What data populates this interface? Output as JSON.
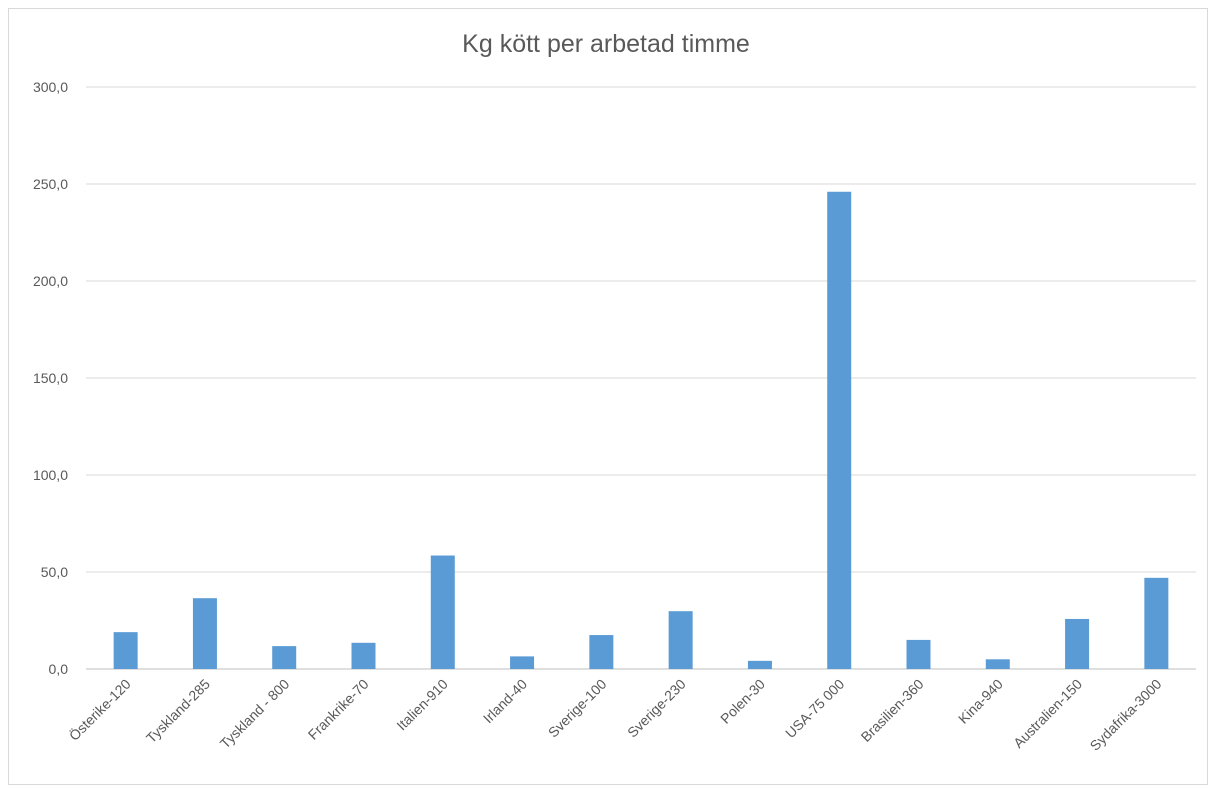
{
  "chart_data": {
    "type": "bar",
    "title": "Kg kött per arbetad timme",
    "xlabel": "",
    "ylabel": "",
    "ylim": [
      0,
      300
    ],
    "yticks": [
      "0,0",
      "50,0",
      "100,0",
      "150,0",
      "200,0",
      "250,0",
      "300,0"
    ],
    "grid": true,
    "legend": "none",
    "bar_color": "#5b9bd5",
    "categories": [
      "Österike-120",
      "Tyskland-285",
      "Tyskland - 800",
      "Frankrike-70",
      "Italien-910",
      "Irland-40",
      "Sverige-100",
      "Sverige-230",
      "Polen-30",
      "USA-75 000",
      "Brasilien-360",
      "Kina-940",
      "Australien-150",
      "Sydafrika-3000"
    ],
    "values": [
      19,
      36.5,
      11.8,
      13.5,
      58.5,
      6.5,
      17.5,
      29.8,
      4.2,
      246,
      15,
      5,
      25.8,
      47
    ]
  }
}
